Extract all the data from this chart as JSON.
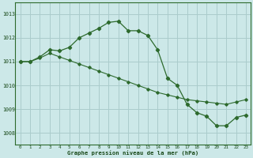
{
  "line1_x": [
    0,
    1,
    2,
    3,
    4,
    5,
    6,
    7,
    8,
    9,
    10,
    11,
    12,
    13,
    14,
    15,
    16,
    17,
    18,
    19,
    20,
    21,
    22,
    23
  ],
  "line1_y": [
    1011.0,
    1011.0,
    1011.2,
    1011.5,
    1011.45,
    1011.6,
    1012.0,
    1012.2,
    1012.4,
    1012.65,
    1012.7,
    1012.3,
    1012.3,
    1012.1,
    1011.5,
    1010.3,
    1010.0,
    1009.2,
    1008.85,
    1008.7,
    1008.3,
    1008.3,
    1008.65,
    1008.75
  ],
  "line2_x": [
    0,
    1,
    2,
    3,
    4,
    5,
    6,
    7,
    8,
    9,
    10,
    11,
    12,
    13,
    14,
    15,
    16,
    17,
    18,
    19,
    20,
    21,
    22,
    23
  ],
  "line2_y": [
    1011.0,
    1011.0,
    1011.15,
    1011.35,
    1011.2,
    1011.05,
    1010.9,
    1010.75,
    1010.6,
    1010.45,
    1010.3,
    1010.15,
    1010.0,
    1009.85,
    1009.7,
    1009.6,
    1009.5,
    1009.4,
    1009.35,
    1009.3,
    1009.25,
    1009.2,
    1009.3,
    1009.4
  ],
  "line_color": "#2d6a2d",
  "bg_color": "#cce8e8",
  "grid_color": "#aacccc",
  "xlabel": "Graphe pression niveau de la mer (hPa)",
  "ylim": [
    1007.5,
    1013.5
  ],
  "xlim": [
    -0.5,
    23.5
  ],
  "yticks": [
    1008,
    1009,
    1010,
    1011,
    1012,
    1013
  ],
  "xticks": [
    0,
    1,
    2,
    3,
    4,
    5,
    6,
    7,
    8,
    9,
    10,
    11,
    12,
    13,
    14,
    15,
    16,
    17,
    18,
    19,
    20,
    21,
    22,
    23
  ]
}
